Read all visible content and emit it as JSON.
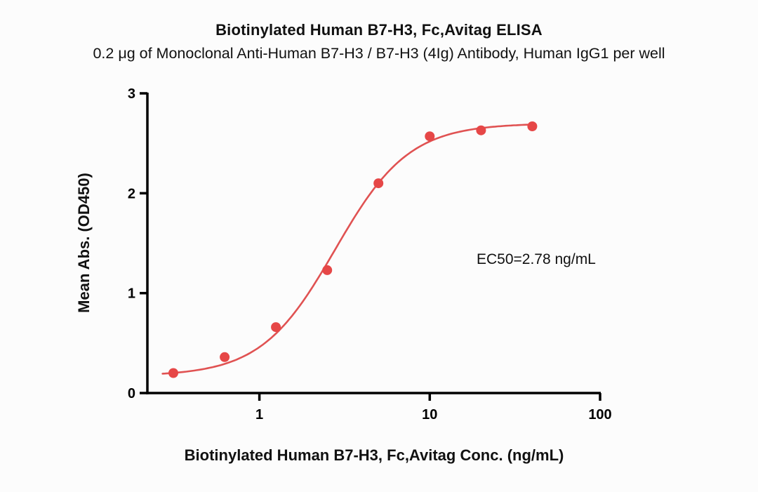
{
  "figure": {
    "title": "Biotinylated Human B7-H3, Fc,Avitag ELISA",
    "subtitle": "0.2 μg of Monoclonal Anti-Human B7-H3 / B7-H3 (4Ig) Antibody, Human IgG1 per well",
    "annotation": "EC50=2.78 ng/mL"
  },
  "chart_data": {
    "type": "scatter",
    "title": "Biotinylated Human B7-H3, Fc,Avitag ELISA",
    "subtitle": "0.2 μg of Monoclonal Anti-Human B7-H3 / B7-H3 (4Ig) Antibody, Human IgG1 per well",
    "xlabel": "Biotinylated Human B7-H3, Fc,Avitag Conc. (ng/mL)",
    "ylabel": "Mean Abs. (OD450)",
    "annotation": "EC50=2.78 ng/mL",
    "xscale": "log",
    "xlim": [
      0.22,
      100
    ],
    "ylim": [
      0,
      3
    ],
    "xticks": [
      1,
      10,
      100
    ],
    "yticks": [
      0,
      1,
      2,
      3
    ],
    "x": [
      0.3125,
      0.625,
      1.25,
      2.5,
      5,
      10,
      20,
      40
    ],
    "y": [
      0.2,
      0.36,
      0.66,
      1.23,
      2.1,
      2.57,
      2.63,
      2.67
    ],
    "curve_fit": {
      "model": "4PL",
      "bottom": 0.17,
      "top": 2.7,
      "ec50": 2.78,
      "hill": 2.0
    },
    "curve_range": [
      0.27,
      40
    ],
    "point_color": "#e64747",
    "line_color": "#e05252",
    "axis_color": "#000000",
    "grid": false,
    "legend": "none"
  }
}
